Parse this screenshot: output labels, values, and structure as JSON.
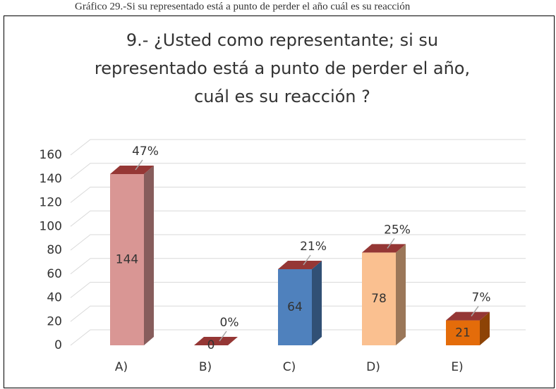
{
  "caption": "Gráfico 29.-Si su representado está a punto de perder el año cuál es su reacción",
  "chart_data": {
    "type": "bar3d",
    "title": [
      "9.- ¿Usted como representante; si su",
      "representado está a punto de perder el año,",
      "cuál es su reacción ?"
    ],
    "categories": [
      "A)",
      "B)",
      "C)",
      "D)",
      "E)"
    ],
    "values": [
      144,
      0,
      64,
      78,
      21
    ],
    "percent_labels": [
      "47%",
      "0%",
      "21%",
      "25%",
      "7%"
    ],
    "colors": [
      "#d99694",
      "#c0504d",
      "#4f81bd",
      "#fac090",
      "#e46c0a"
    ],
    "top_color": "#953735",
    "ylim": [
      0,
      160
    ],
    "yticks": [
      0,
      20,
      40,
      60,
      80,
      100,
      120,
      140,
      160
    ],
    "grid": true
  }
}
